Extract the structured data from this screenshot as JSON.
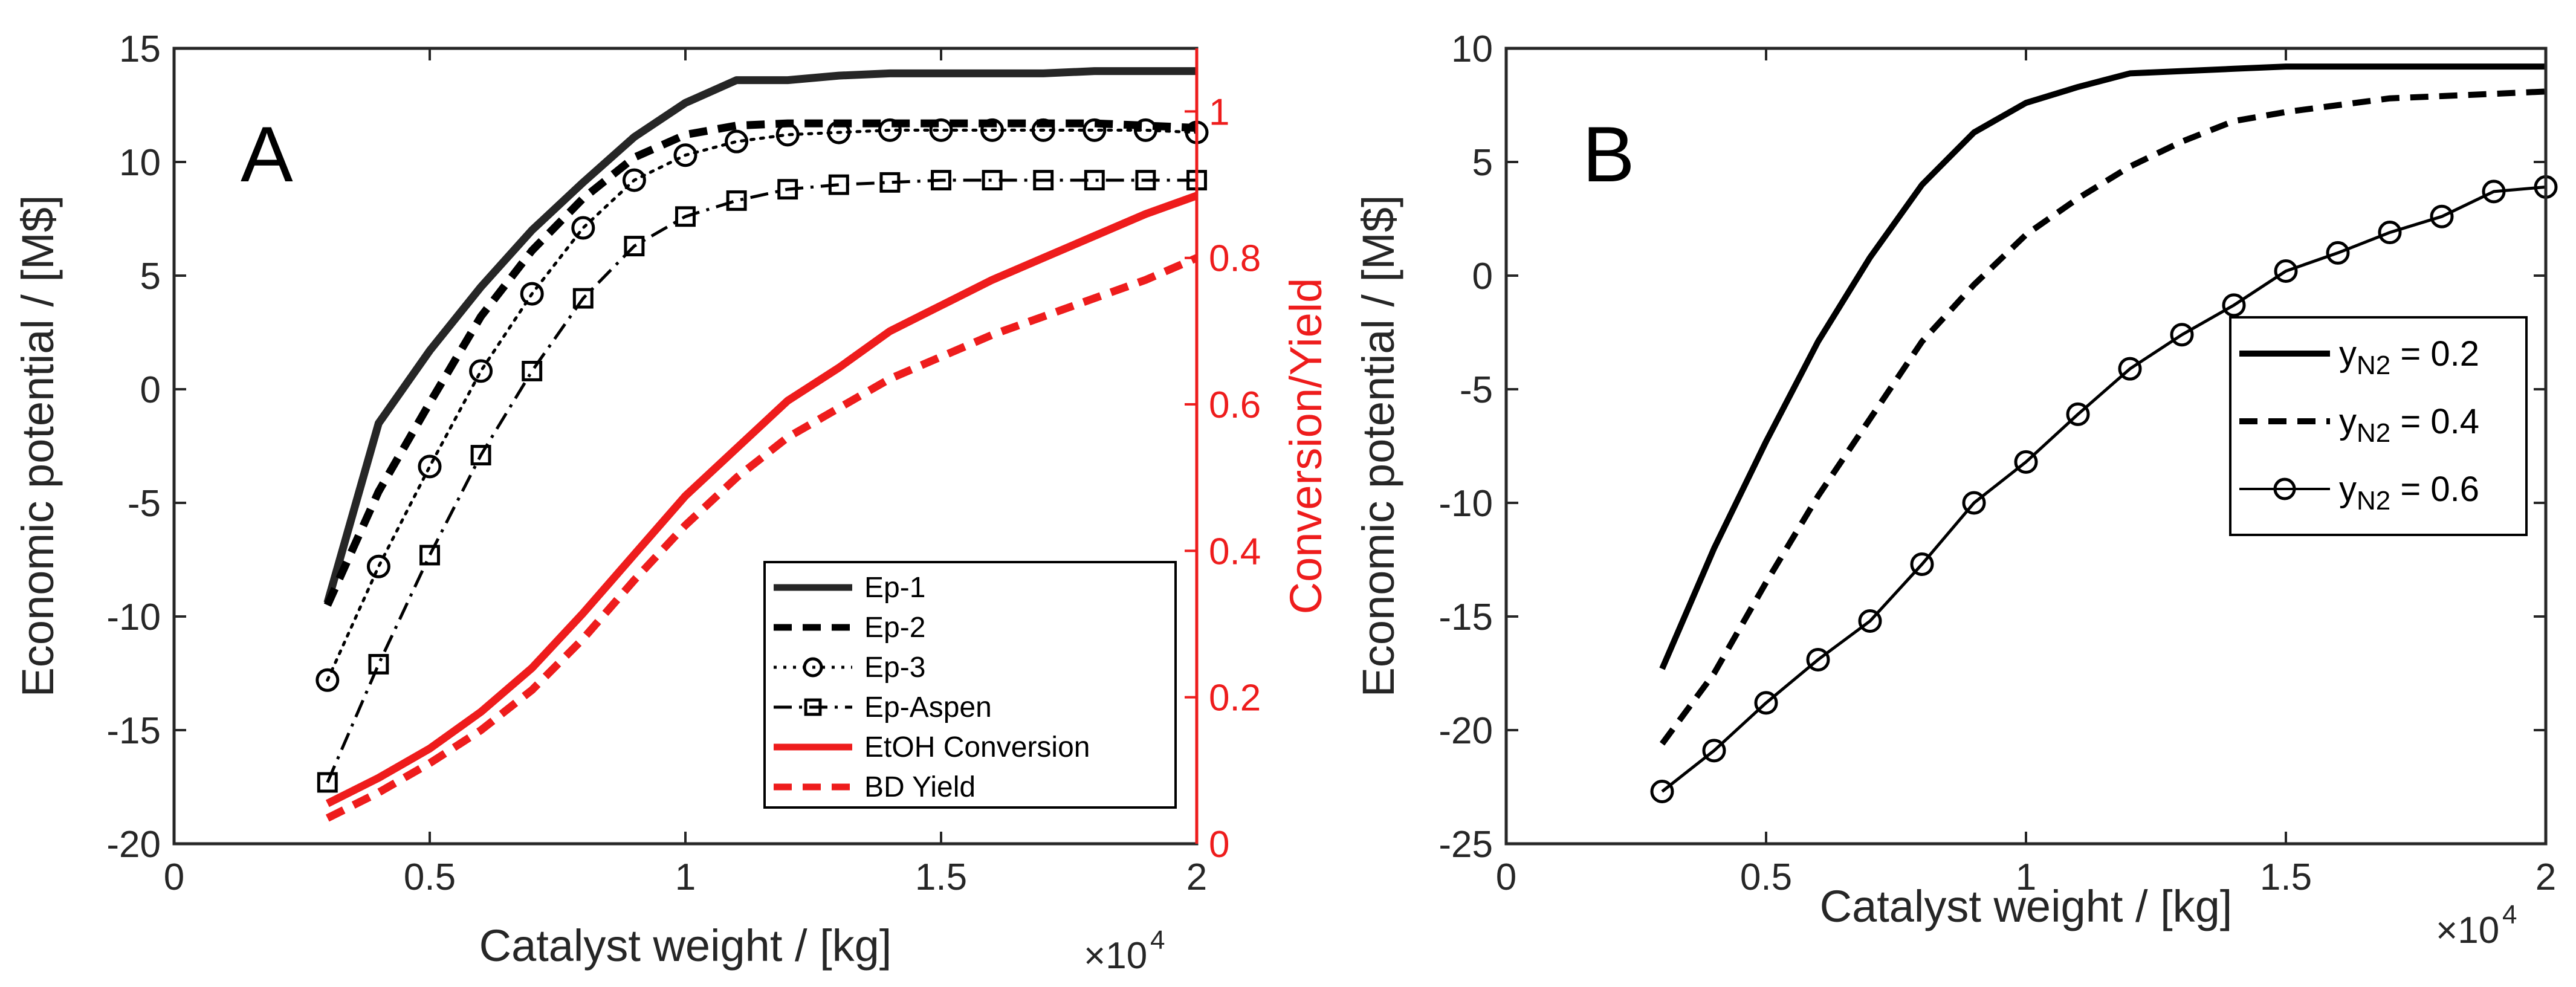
{
  "chart_data": [
    {
      "id": "A",
      "type": "line",
      "panel_label": "A",
      "xlabel": "Catalyst weight / [kg]",
      "ylabel": "Economic potential / [M$]",
      "y2label": "Conversion/Yield",
      "x_exponent": "×10",
      "x_exponent_power": "4",
      "xlim": [
        0,
        20000
      ],
      "ylim": [
        -20,
        15
      ],
      "y2lim": [
        0,
        1.0862
      ],
      "xticks": [
        0,
        5000,
        10000,
        15000,
        20000
      ],
      "xtick_labels": [
        "0",
        "0.5",
        "1",
        "1.5",
        "2"
      ],
      "yticks": [
        -20,
        -15,
        -10,
        -5,
        0,
        5,
        10,
        15
      ],
      "ytick_labels": [
        "-20",
        "-15",
        "-10",
        "-5",
        "0",
        "5",
        "10",
        "15"
      ],
      "y2ticks": [
        0,
        0.2,
        0.4,
        0.6,
        0.8,
        1
      ],
      "y2tick_labels": [
        "0",
        "0.2",
        "0.4",
        "0.6",
        "0.8",
        "1"
      ],
      "legend_position": "lower-right",
      "series": [
        {
          "name": "Ep-1",
          "axis": "left",
          "style": "solid",
          "marker": "none",
          "color": "#262626",
          "x": [
            3000,
            4000,
            5000,
            6000,
            7000,
            8000,
            9000,
            10000,
            11000,
            12000,
            13000,
            14000,
            15000,
            16000,
            17000,
            18000,
            19000,
            20000
          ],
          "y": [
            -9.4,
            -1.5,
            1.7,
            4.5,
            7.0,
            9.1,
            11.1,
            12.6,
            13.6,
            13.6,
            13.8,
            13.9,
            13.9,
            13.9,
            13.9,
            14.0,
            14.0,
            14.0
          ]
        },
        {
          "name": "Ep-2",
          "axis": "left",
          "style": "dashed",
          "marker": "none",
          "color": "#000000",
          "x": [
            3000,
            4000,
            5000,
            6000,
            7000,
            8000,
            9000,
            10000,
            11000,
            12000,
            13000,
            14000,
            15000,
            16000,
            17000,
            18000,
            19000,
            20000
          ],
          "y": [
            -9.5,
            -4.5,
            -0.6,
            3.2,
            6.1,
            8.4,
            10.2,
            11.2,
            11.6,
            11.7,
            11.7,
            11.7,
            11.7,
            11.7,
            11.7,
            11.7,
            11.6,
            11.5
          ]
        },
        {
          "name": "Ep-3",
          "axis": "left",
          "style": "dotted",
          "marker": "circle",
          "color": "#000000",
          "x": [
            3000,
            4000,
            5000,
            6000,
            7000,
            8000,
            9000,
            10000,
            11000,
            12000,
            13000,
            14000,
            15000,
            16000,
            17000,
            18000,
            19000,
            20000
          ],
          "y": [
            -12.8,
            -7.8,
            -3.4,
            0.8,
            4.2,
            7.1,
            9.2,
            10.3,
            10.9,
            11.2,
            11.3,
            11.4,
            11.4,
            11.4,
            11.4,
            11.4,
            11.4,
            11.3
          ]
        },
        {
          "name": "Ep-Aspen",
          "axis": "left",
          "style": "dashdot",
          "marker": "square",
          "color": "#000000",
          "x": [
            3000,
            4000,
            5000,
            6000,
            7000,
            8000,
            9000,
            10000,
            11000,
            12000,
            13000,
            14000,
            15000,
            16000,
            17000,
            18000,
            19000,
            20000
          ],
          "y": [
            -17.3,
            -12.1,
            -7.3,
            -2.9,
            0.8,
            4.0,
            6.3,
            7.6,
            8.3,
            8.8,
            9.0,
            9.1,
            9.2,
            9.2,
            9.2,
            9.2,
            9.2,
            9.2
          ]
        },
        {
          "name": "EtOH Conversion",
          "axis": "right",
          "style": "solid",
          "marker": "none",
          "color": "#ee1c1c",
          "x": [
            3000,
            4000,
            5000,
            6000,
            7000,
            8000,
            9000,
            10000,
            11000,
            12000,
            13000,
            14000,
            15000,
            16000,
            17000,
            18000,
            19000,
            20000
          ],
          "y": [
            0.055,
            0.09,
            0.13,
            0.18,
            0.24,
            0.315,
            0.395,
            0.475,
            0.54,
            0.605,
            0.65,
            0.7,
            0.735,
            0.77,
            0.8,
            0.83,
            0.86,
            0.885
          ]
        },
        {
          "name": "BD Yield",
          "axis": "right",
          "style": "dashed",
          "marker": "none",
          "color": "#ee1c1c",
          "x": [
            3000,
            4000,
            5000,
            6000,
            7000,
            8000,
            9000,
            10000,
            11000,
            12000,
            13000,
            14000,
            15000,
            16000,
            17000,
            18000,
            19000,
            20000
          ],
          "y": [
            0.035,
            0.07,
            0.11,
            0.155,
            0.21,
            0.28,
            0.36,
            0.435,
            0.5,
            0.555,
            0.595,
            0.635,
            0.665,
            0.695,
            0.72,
            0.745,
            0.77,
            0.8
          ]
        }
      ]
    },
    {
      "id": "B",
      "type": "line",
      "panel_label": "B",
      "xlabel": "Catalyst weight / [kg]",
      "ylabel": "Economic potential / [M$]",
      "x_exponent": "×10",
      "x_exponent_power": "4",
      "xlim": [
        0,
        20000
      ],
      "ylim": [
        -25,
        10
      ],
      "xticks": [
        0,
        5000,
        10000,
        15000,
        20000
      ],
      "xtick_labels": [
        "0",
        "0.5",
        "1",
        "1.5",
        "2"
      ],
      "yticks": [
        -25,
        -20,
        -15,
        -10,
        -5,
        0,
        5,
        10
      ],
      "ytick_labels": [
        "-25",
        "-20",
        "-15",
        "-10",
        "-5",
        "0",
        "5",
        "10"
      ],
      "legend_position": "top-right",
      "series": [
        {
          "name": "y",
          "name_sub": "N2",
          "name_value": " = 0.2",
          "style": "solid",
          "marker": "none",
          "color": "#000000",
          "x": [
            3000,
            4000,
            5000,
            6000,
            7000,
            8000,
            9000,
            10000,
            11000,
            12000,
            13000,
            14000,
            15000,
            16000,
            17000,
            18000,
            19000,
            20000
          ],
          "y": [
            -17.3,
            -12.0,
            -7.3,
            -2.9,
            0.8,
            4.0,
            6.3,
            7.6,
            8.3,
            8.9,
            9.0,
            9.1,
            9.2,
            9.2,
            9.2,
            9.2,
            9.2,
            9.2
          ]
        },
        {
          "name": "y",
          "name_sub": "N2",
          "name_value": " = 0.4",
          "style": "dashed",
          "marker": "none",
          "color": "#000000",
          "x": [
            3000,
            4000,
            5000,
            6000,
            7000,
            8000,
            9000,
            10000,
            11000,
            12000,
            13000,
            14000,
            15000,
            16000,
            17000,
            18000,
            19000,
            20000
          ],
          "y": [
            -20.6,
            -17.5,
            -13.5,
            -9.7,
            -6.3,
            -2.9,
            -0.4,
            1.8,
            3.4,
            4.8,
            5.9,
            6.8,
            7.2,
            7.5,
            7.8,
            7.9,
            8.0,
            8.1
          ]
        },
        {
          "name": "y",
          "name_sub": "N2",
          "name_value": " = 0.6",
          "style": "solid",
          "marker": "circle",
          "color": "#000000",
          "x": [
            3000,
            4000,
            5000,
            6000,
            7000,
            8000,
            9000,
            10000,
            11000,
            12000,
            13000,
            14000,
            15000,
            16000,
            17000,
            18000,
            19000,
            20000
          ],
          "y": [
            -22.7,
            -20.9,
            -18.8,
            -16.9,
            -15.2,
            -12.7,
            -10.0,
            -8.2,
            -6.1,
            -4.1,
            -2.6,
            -1.3,
            0.2,
            1.0,
            1.9,
            2.6,
            3.7,
            3.9
          ]
        }
      ]
    }
  ]
}
